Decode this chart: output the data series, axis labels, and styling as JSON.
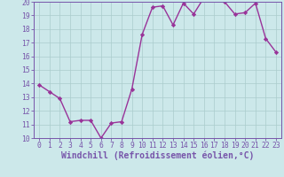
{
  "x": [
    0,
    1,
    2,
    3,
    4,
    5,
    6,
    7,
    8,
    9,
    10,
    11,
    12,
    13,
    14,
    15,
    16,
    17,
    18,
    19,
    20,
    21,
    22,
    23
  ],
  "y": [
    13.9,
    13.4,
    12.9,
    11.2,
    11.3,
    11.3,
    10.0,
    11.1,
    11.2,
    13.6,
    17.6,
    19.6,
    19.7,
    18.3,
    19.9,
    19.1,
    20.3,
    20.2,
    20.0,
    19.1,
    19.2,
    19.9,
    17.3,
    16.3
  ],
  "line_color": "#993399",
  "marker": "D",
  "marker_size": 2.2,
  "background_color": "#cce8ea",
  "grid_color": "#aacccc",
  "xlabel": "Windchill (Refroidissement éolien,°C)",
  "xlim": [
    -0.5,
    23.5
  ],
  "ylim": [
    10,
    20
  ],
  "yticks": [
    10,
    11,
    12,
    13,
    14,
    15,
    16,
    17,
    18,
    19,
    20
  ],
  "xticks": [
    0,
    1,
    2,
    3,
    4,
    5,
    6,
    7,
    8,
    9,
    10,
    11,
    12,
    13,
    14,
    15,
    16,
    17,
    18,
    19,
    20,
    21,
    22,
    23
  ],
  "tick_label_fontsize": 5.8,
  "xlabel_fontsize": 7.0,
  "spine_color": "#7755aa",
  "line_width": 1.0
}
